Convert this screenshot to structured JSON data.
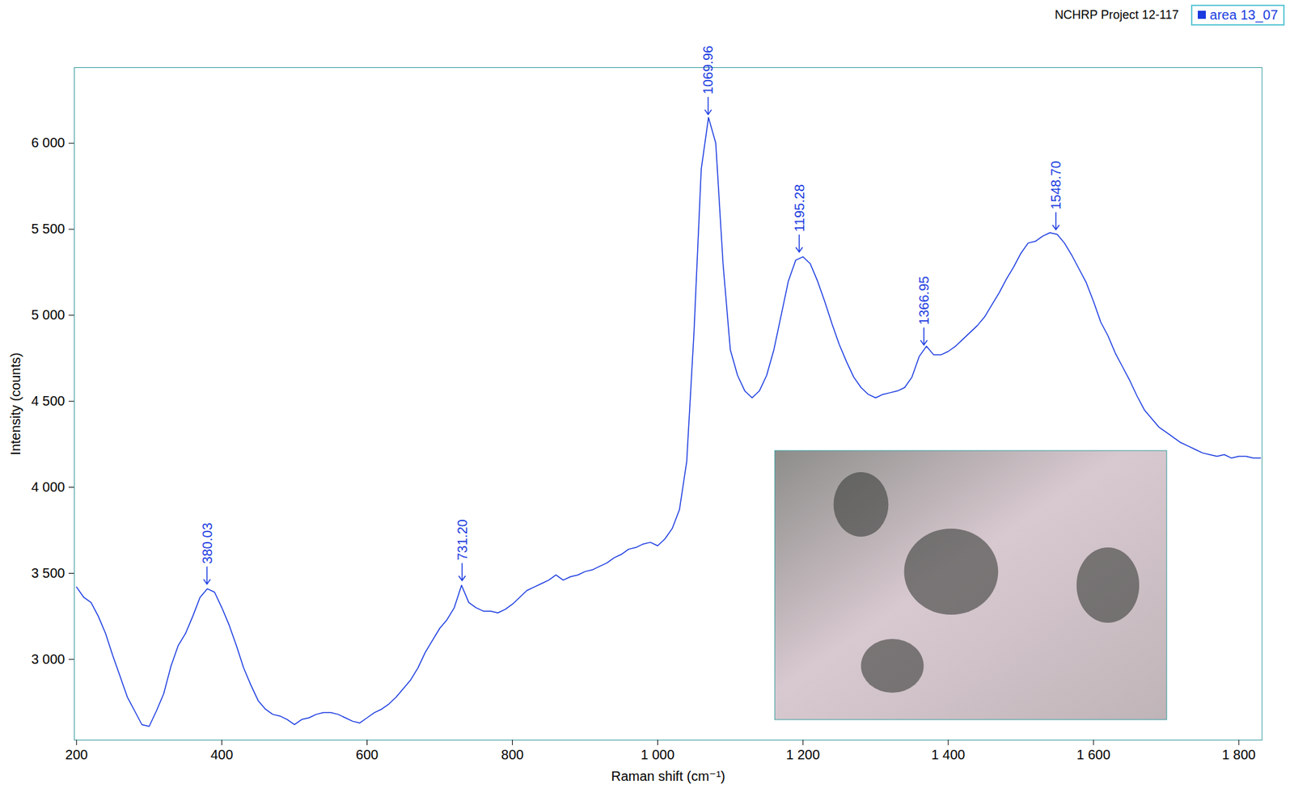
{
  "chart_data": {
    "type": "line",
    "title": "NCHRP Project 12-117",
    "x_label": "Raman shift (cm⁻¹)",
    "y_label": "Intensity (counts)",
    "legend": "top-right",
    "xlim": [
      197,
      1832
    ],
    "ylim": [
      2530,
      6440
    ],
    "xticks": [
      200,
      400,
      600,
      800,
      {
        "value": 1000,
        "label": "1 000"
      },
      {
        "value": 1200,
        "label": "1 200"
      },
      {
        "value": 1400,
        "label": "1 400"
      },
      {
        "value": 1600,
        "label": "1 600"
      },
      {
        "value": 1800,
        "label": "1 800"
      }
    ],
    "yticks": [
      {
        "value": 3000,
        "label": "3 000"
      },
      {
        "value": 3500,
        "label": "3 500"
      },
      {
        "value": 4000,
        "label": "4 000"
      },
      {
        "value": 4500,
        "label": "4 500"
      },
      {
        "value": 5000,
        "label": "5 000"
      },
      {
        "value": 5500,
        "label": "5 500"
      },
      {
        "value": 6000,
        "label": "6 000"
      }
    ],
    "grid": false,
    "x": [
      200,
      210,
      220,
      230,
      240,
      250,
      260,
      270,
      280,
      290,
      300,
      310,
      320,
      330,
      340,
      350,
      360,
      370,
      380,
      390,
      400,
      410,
      420,
      430,
      440,
      450,
      460,
      470,
      480,
      490,
      500,
      510,
      520,
      530,
      540,
      550,
      560,
      570,
      580,
      590,
      600,
      610,
      620,
      630,
      640,
      650,
      660,
      670,
      680,
      690,
      700,
      710,
      720,
      730,
      740,
      750,
      760,
      770,
      780,
      790,
      800,
      810,
      820,
      830,
      840,
      850,
      860,
      870,
      880,
      890,
      900,
      910,
      920,
      930,
      940,
      950,
      960,
      970,
      980,
      990,
      1000,
      1010,
      1020,
      1030,
      1040,
      1050,
      1060,
      1070,
      1080,
      1090,
      1100,
      1110,
      1120,
      1130,
      1140,
      1150,
      1160,
      1170,
      1180,
      1190,
      1200,
      1210,
      1220,
      1230,
      1240,
      1250,
      1260,
      1270,
      1280,
      1290,
      1300,
      1310,
      1320,
      1330,
      1340,
      1350,
      1360,
      1370,
      1380,
      1390,
      1400,
      1410,
      1420,
      1430,
      1440,
      1450,
      1460,
      1470,
      1480,
      1490,
      1500,
      1510,
      1520,
      1530,
      1540,
      1550,
      1560,
      1570,
      1580,
      1590,
      1600,
      1610,
      1620,
      1630,
      1640,
      1650,
      1660,
      1670,
      1680,
      1690,
      1700,
      1710,
      1720,
      1730,
      1740,
      1750,
      1760,
      1770,
      1780,
      1790,
      1800,
      1810,
      1820,
      1830
    ],
    "series": [
      {
        "name": "area 13_07",
        "color": "#1a3be0",
        "values": [
          3420,
          3360,
          3330,
          3250,
          3150,
          3020,
          2900,
          2780,
          2700,
          2620,
          2610,
          2700,
          2800,
          2960,
          3080,
          3150,
          3250,
          3360,
          3410,
          3390,
          3300,
          3200,
          3080,
          2950,
          2850,
          2760,
          2710,
          2680,
          2670,
          2650,
          2620,
          2650,
          2660,
          2680,
          2690,
          2690,
          2680,
          2660,
          2640,
          2630,
          2660,
          2690,
          2710,
          2740,
          2780,
          2830,
          2880,
          2950,
          3040,
          3110,
          3180,
          3230,
          3300,
          3430,
          3330,
          3300,
          3280,
          3280,
          3270,
          3290,
          3320,
          3360,
          3400,
          3420,
          3440,
          3460,
          3490,
          3460,
          3480,
          3490,
          3510,
          3520,
          3540,
          3560,
          3590,
          3610,
          3640,
          3650,
          3670,
          3680,
          3660,
          3700,
          3760,
          3870,
          4150,
          4900,
          5850,
          6150,
          6000,
          5300,
          4800,
          4650,
          4560,
          4520,
          4560,
          4650,
          4800,
          5000,
          5200,
          5320,
          5340,
          5300,
          5200,
          5080,
          4950,
          4830,
          4730,
          4640,
          4580,
          4540,
          4520,
          4540,
          4550,
          4560,
          4580,
          4640,
          4760,
          4820,
          4770,
          4770,
          4790,
          4820,
          4860,
          4900,
          4940,
          4990,
          5060,
          5130,
          5210,
          5280,
          5360,
          5420,
          5430,
          5460,
          5480,
          5470,
          5420,
          5350,
          5270,
          5190,
          5080,
          4960,
          4880,
          4780,
          4700,
          4620,
          4530,
          4450,
          4400,
          4350,
          4320,
          4290,
          4260,
          4240,
          4220,
          4200,
          4190,
          4180,
          4190,
          4170,
          4180,
          4180,
          4170,
          4170
        ]
      }
    ],
    "annotations": [
      {
        "x": 380.03,
        "y": 3420,
        "label": "380.03"
      },
      {
        "x": 731.2,
        "y": 3440,
        "label": "731.20"
      },
      {
        "x": 1069.96,
        "y": 6150,
        "label": "1069.96"
      },
      {
        "x": 1195.28,
        "y": 5350,
        "label": "1195.28"
      },
      {
        "x": 1366.95,
        "y": 4810,
        "label": "1366.95"
      },
      {
        "x": 1548.7,
        "y": 5480,
        "label": "1548.70"
      }
    ]
  }
}
